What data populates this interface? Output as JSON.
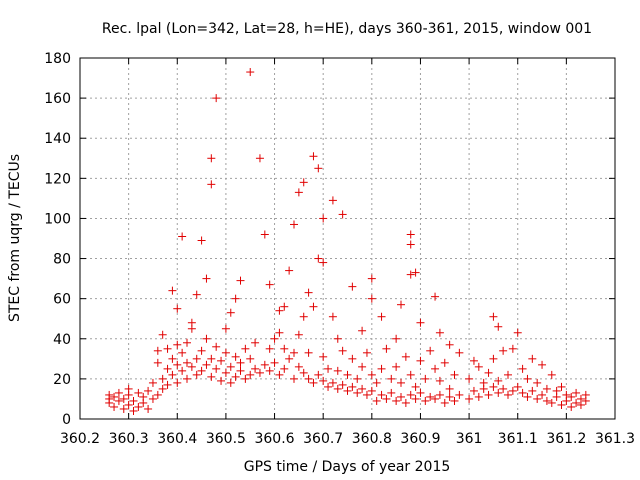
{
  "chart_data": {
    "type": "scatter",
    "title": "Rec. lpal (Lon=342, Lat=28, h=HE), days 360-361, 2015, window 001",
    "xlabel": "GPS time / Days of year 2015",
    "ylabel": "STEC from uqrg / TECUs",
    "xlim": [
      360.2,
      361.3
    ],
    "ylim": [
      0,
      180
    ],
    "xticks": [
      "360.2",
      "360.3",
      "360.4",
      "360.5",
      "360.6",
      "360.7",
      "360.8",
      "360.9",
      "361",
      "361.1",
      "361.2",
      "361.3"
    ],
    "yticks": [
      "0",
      "20",
      "40",
      "60",
      "80",
      "100",
      "120",
      "140",
      "160",
      "180"
    ],
    "grid": true,
    "marker": "+",
    "color": "#e00000",
    "series": [
      {
        "points": [
          [
            360.26,
            8
          ],
          [
            360.26,
            10
          ],
          [
            360.26,
            12
          ],
          [
            360.27,
            6
          ],
          [
            360.27,
            11
          ],
          [
            360.28,
            9
          ],
          [
            360.28,
            13
          ],
          [
            360.29,
            5
          ],
          [
            360.29,
            10
          ],
          [
            360.3,
            7
          ],
          [
            360.3,
            12
          ],
          [
            360.3,
            15
          ],
          [
            360.31,
            4
          ],
          [
            360.31,
            9
          ],
          [
            360.32,
            6
          ],
          [
            360.32,
            13
          ],
          [
            360.33,
            8
          ],
          [
            360.33,
            11
          ],
          [
            360.34,
            5
          ],
          [
            360.34,
            14
          ],
          [
            360.35,
            10
          ],
          [
            360.35,
            18
          ],
          [
            360.36,
            12
          ],
          [
            360.36,
            28
          ],
          [
            360.36,
            34
          ],
          [
            360.37,
            15
          ],
          [
            360.37,
            20
          ],
          [
            360.37,
            42
          ],
          [
            360.38,
            17
          ],
          [
            360.38,
            25
          ],
          [
            360.38,
            35
          ],
          [
            360.39,
            22
          ],
          [
            360.39,
            30
          ],
          [
            360.39,
            64
          ],
          [
            360.4,
            18
          ],
          [
            360.4,
            27
          ],
          [
            360.4,
            37
          ],
          [
            360.4,
            55
          ],
          [
            360.41,
            24
          ],
          [
            360.41,
            33
          ],
          [
            360.41,
            91
          ],
          [
            360.42,
            20
          ],
          [
            360.42,
            28
          ],
          [
            360.42,
            38
          ],
          [
            360.43,
            26
          ],
          [
            360.43,
            45
          ],
          [
            360.43,
            48
          ],
          [
            360.44,
            22
          ],
          [
            360.44,
            30
          ],
          [
            360.44,
            62
          ],
          [
            360.45,
            24
          ],
          [
            360.45,
            34
          ],
          [
            360.45,
            89
          ],
          [
            360.46,
            27
          ],
          [
            360.46,
            40
          ],
          [
            360.46,
            70
          ],
          [
            360.47,
            21
          ],
          [
            360.47,
            30
          ],
          [
            360.47,
            117
          ],
          [
            360.47,
            130
          ],
          [
            360.48,
            25
          ],
          [
            360.48,
            36
          ],
          [
            360.48,
            160
          ],
          [
            360.49,
            19
          ],
          [
            360.49,
            29
          ],
          [
            360.5,
            23
          ],
          [
            360.5,
            33
          ],
          [
            360.5,
            45
          ],
          [
            360.51,
            18
          ],
          [
            360.51,
            26
          ],
          [
            360.51,
            53
          ],
          [
            360.52,
            21
          ],
          [
            360.52,
            31
          ],
          [
            360.52,
            60
          ],
          [
            360.53,
            24
          ],
          [
            360.53,
            28
          ],
          [
            360.53,
            69
          ],
          [
            360.54,
            20
          ],
          [
            360.54,
            35
          ],
          [
            360.55,
            22
          ],
          [
            360.55,
            30
          ],
          [
            360.55,
            173
          ],
          [
            360.56,
            25
          ],
          [
            360.56,
            38
          ],
          [
            360.57,
            23
          ],
          [
            360.57,
            130
          ],
          [
            360.58,
            27
          ],
          [
            360.58,
            92
          ],
          [
            360.59,
            24
          ],
          [
            360.59,
            35
          ],
          [
            360.59,
            67
          ],
          [
            360.6,
            28
          ],
          [
            360.6,
            40
          ],
          [
            360.61,
            22
          ],
          [
            360.61,
            43
          ],
          [
            360.61,
            54
          ],
          [
            360.62,
            25
          ],
          [
            360.62,
            35
          ],
          [
            360.62,
            56
          ],
          [
            360.63,
            30
          ],
          [
            360.63,
            74
          ],
          [
            360.64,
            20
          ],
          [
            360.64,
            33
          ],
          [
            360.64,
            97
          ],
          [
            360.65,
            26
          ],
          [
            360.65,
            42
          ],
          [
            360.65,
            113
          ],
          [
            360.66,
            23
          ],
          [
            360.66,
            51
          ],
          [
            360.66,
            118
          ],
          [
            360.67,
            20
          ],
          [
            360.67,
            33
          ],
          [
            360.67,
            63
          ],
          [
            360.68,
            18
          ],
          [
            360.68,
            56
          ],
          [
            360.68,
            131
          ],
          [
            360.69,
            22
          ],
          [
            360.69,
            80
          ],
          [
            360.69,
            125
          ],
          [
            360.7,
            19
          ],
          [
            360.7,
            31
          ],
          [
            360.7,
            78
          ],
          [
            360.7,
            100
          ],
          [
            360.71,
            16
          ],
          [
            360.71,
            25
          ],
          [
            360.72,
            18
          ],
          [
            360.72,
            51
          ],
          [
            360.72,
            109
          ],
          [
            360.73,
            15
          ],
          [
            360.73,
            24
          ],
          [
            360.73,
            40
          ],
          [
            360.74,
            17
          ],
          [
            360.74,
            34
          ],
          [
            360.74,
            102
          ],
          [
            360.75,
            14
          ],
          [
            360.75,
            22
          ],
          [
            360.76,
            16
          ],
          [
            360.76,
            30
          ],
          [
            360.76,
            66
          ],
          [
            360.77,
            13
          ],
          [
            360.77,
            20
          ],
          [
            360.78,
            15
          ],
          [
            360.78,
            26
          ],
          [
            360.78,
            44
          ],
          [
            360.79,
            12
          ],
          [
            360.79,
            33
          ],
          [
            360.8,
            14
          ],
          [
            360.8,
            22
          ],
          [
            360.8,
            60
          ],
          [
            360.8,
            70
          ],
          [
            360.81,
            9
          ],
          [
            360.81,
            18
          ],
          [
            360.82,
            12
          ],
          [
            360.82,
            25
          ],
          [
            360.82,
            51
          ],
          [
            360.83,
            10
          ],
          [
            360.83,
            35
          ],
          [
            360.84,
            13
          ],
          [
            360.84,
            20
          ],
          [
            360.85,
            9
          ],
          [
            360.85,
            26
          ],
          [
            360.85,
            40
          ],
          [
            360.86,
            11
          ],
          [
            360.86,
            18
          ],
          [
            360.86,
            57
          ],
          [
            360.87,
            8
          ],
          [
            360.87,
            31
          ],
          [
            360.88,
            12
          ],
          [
            360.88,
            22
          ],
          [
            360.88,
            72
          ],
          [
            360.88,
            87
          ],
          [
            360.88,
            92
          ],
          [
            360.89,
            10
          ],
          [
            360.89,
            16
          ],
          [
            360.89,
            73
          ],
          [
            360.9,
            13
          ],
          [
            360.9,
            29
          ],
          [
            360.9,
            48
          ],
          [
            360.91,
            9
          ],
          [
            360.91,
            20
          ],
          [
            360.92,
            11
          ],
          [
            360.92,
            34
          ],
          [
            360.93,
            10
          ],
          [
            360.93,
            25
          ],
          [
            360.93,
            61
          ],
          [
            360.94,
            12
          ],
          [
            360.94,
            19
          ],
          [
            360.94,
            43
          ],
          [
            360.95,
            8
          ],
          [
            360.95,
            28
          ],
          [
            360.96,
            11
          ],
          [
            360.96,
            15
          ],
          [
            360.96,
            37
          ],
          [
            360.97,
            9
          ],
          [
            360.97,
            22
          ],
          [
            360.98,
            12
          ],
          [
            360.98,
            33
          ],
          [
            361.0,
            10
          ],
          [
            361.0,
            20
          ],
          [
            361.01,
            14
          ],
          [
            361.01,
            29
          ],
          [
            361.02,
            11
          ],
          [
            361.02,
            26
          ],
          [
            361.03,
            15
          ],
          [
            361.03,
            18
          ],
          [
            361.04,
            12
          ],
          [
            361.04,
            23
          ],
          [
            361.05,
            16
          ],
          [
            361.05,
            30
          ],
          [
            361.05,
            51
          ],
          [
            361.06,
            13
          ],
          [
            361.06,
            19
          ],
          [
            361.06,
            46
          ],
          [
            361.07,
            15
          ],
          [
            361.07,
            34
          ],
          [
            361.08,
            12
          ],
          [
            361.08,
            22
          ],
          [
            361.09,
            14
          ],
          [
            361.09,
            35
          ],
          [
            361.1,
            16
          ],
          [
            361.1,
            43
          ],
          [
            361.11,
            13
          ],
          [
            361.11,
            25
          ],
          [
            361.12,
            11
          ],
          [
            361.12,
            20
          ],
          [
            361.13,
            14
          ],
          [
            361.13,
            30
          ],
          [
            361.14,
            10
          ],
          [
            361.14,
            18
          ],
          [
            361.15,
            12
          ],
          [
            361.15,
            27
          ],
          [
            361.16,
            9
          ],
          [
            361.16,
            15
          ],
          [
            361.17,
            8
          ],
          [
            361.17,
            22
          ],
          [
            361.18,
            11
          ],
          [
            361.18,
            14
          ],
          [
            361.19,
            7
          ],
          [
            361.19,
            16
          ],
          [
            361.2,
            9
          ],
          [
            361.2,
            12
          ],
          [
            361.21,
            6
          ],
          [
            361.21,
            11
          ],
          [
            361.22,
            8
          ],
          [
            361.22,
            13
          ],
          [
            361.23,
            7
          ],
          [
            361.23,
            10
          ],
          [
            361.24,
            9
          ],
          [
            361.24,
            12
          ]
        ]
      }
    ]
  }
}
